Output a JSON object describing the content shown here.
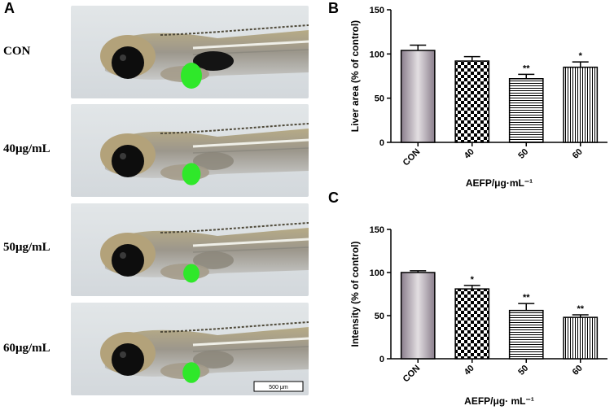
{
  "panel_a": {
    "letter": "A",
    "rows": [
      {
        "label": "CON",
        "liver": 1.0
      },
      {
        "label": "40μg/mL",
        "liver": 0.85
      },
      {
        "label": "50μg/mL",
        "liver": 0.72
      },
      {
        "label": "60μg/mL",
        "liver": 0.8
      }
    ],
    "scale_bar": "500 μm"
  },
  "chart_data": [
    {
      "type": "bar",
      "letter": "B",
      "categories": [
        "CON",
        "40",
        "50",
        "60"
      ],
      "values": [
        104,
        92,
        72,
        85
      ],
      "errors": [
        6,
        5,
        5,
        6
      ],
      "significance": [
        "",
        "",
        "**",
        "*"
      ],
      "ylabel": "Liver area (% of control)",
      "xlabel": "AEFP/μg·mL⁻¹",
      "ylim": [
        0,
        150
      ],
      "yticks": [
        0,
        50,
        100,
        150
      ],
      "grid": false,
      "patterns": [
        "gradient",
        "checker",
        "hlines",
        "vlines"
      ]
    },
    {
      "type": "bar",
      "letter": "C",
      "categories": [
        "CON",
        "40",
        "50",
        "60"
      ],
      "values": [
        100,
        81,
        56,
        48
      ],
      "errors": [
        2,
        4,
        8,
        3
      ],
      "significance": [
        "",
        "*",
        "**",
        "**"
      ],
      "ylabel": "Intensity (% of control)",
      "xlabel": "AEFP/μg· mL⁻¹",
      "ylim": [
        0,
        150
      ],
      "yticks": [
        0,
        50,
        100,
        150
      ],
      "grid": false,
      "patterns": [
        "gradient",
        "checker",
        "hlines",
        "vlines"
      ]
    }
  ]
}
